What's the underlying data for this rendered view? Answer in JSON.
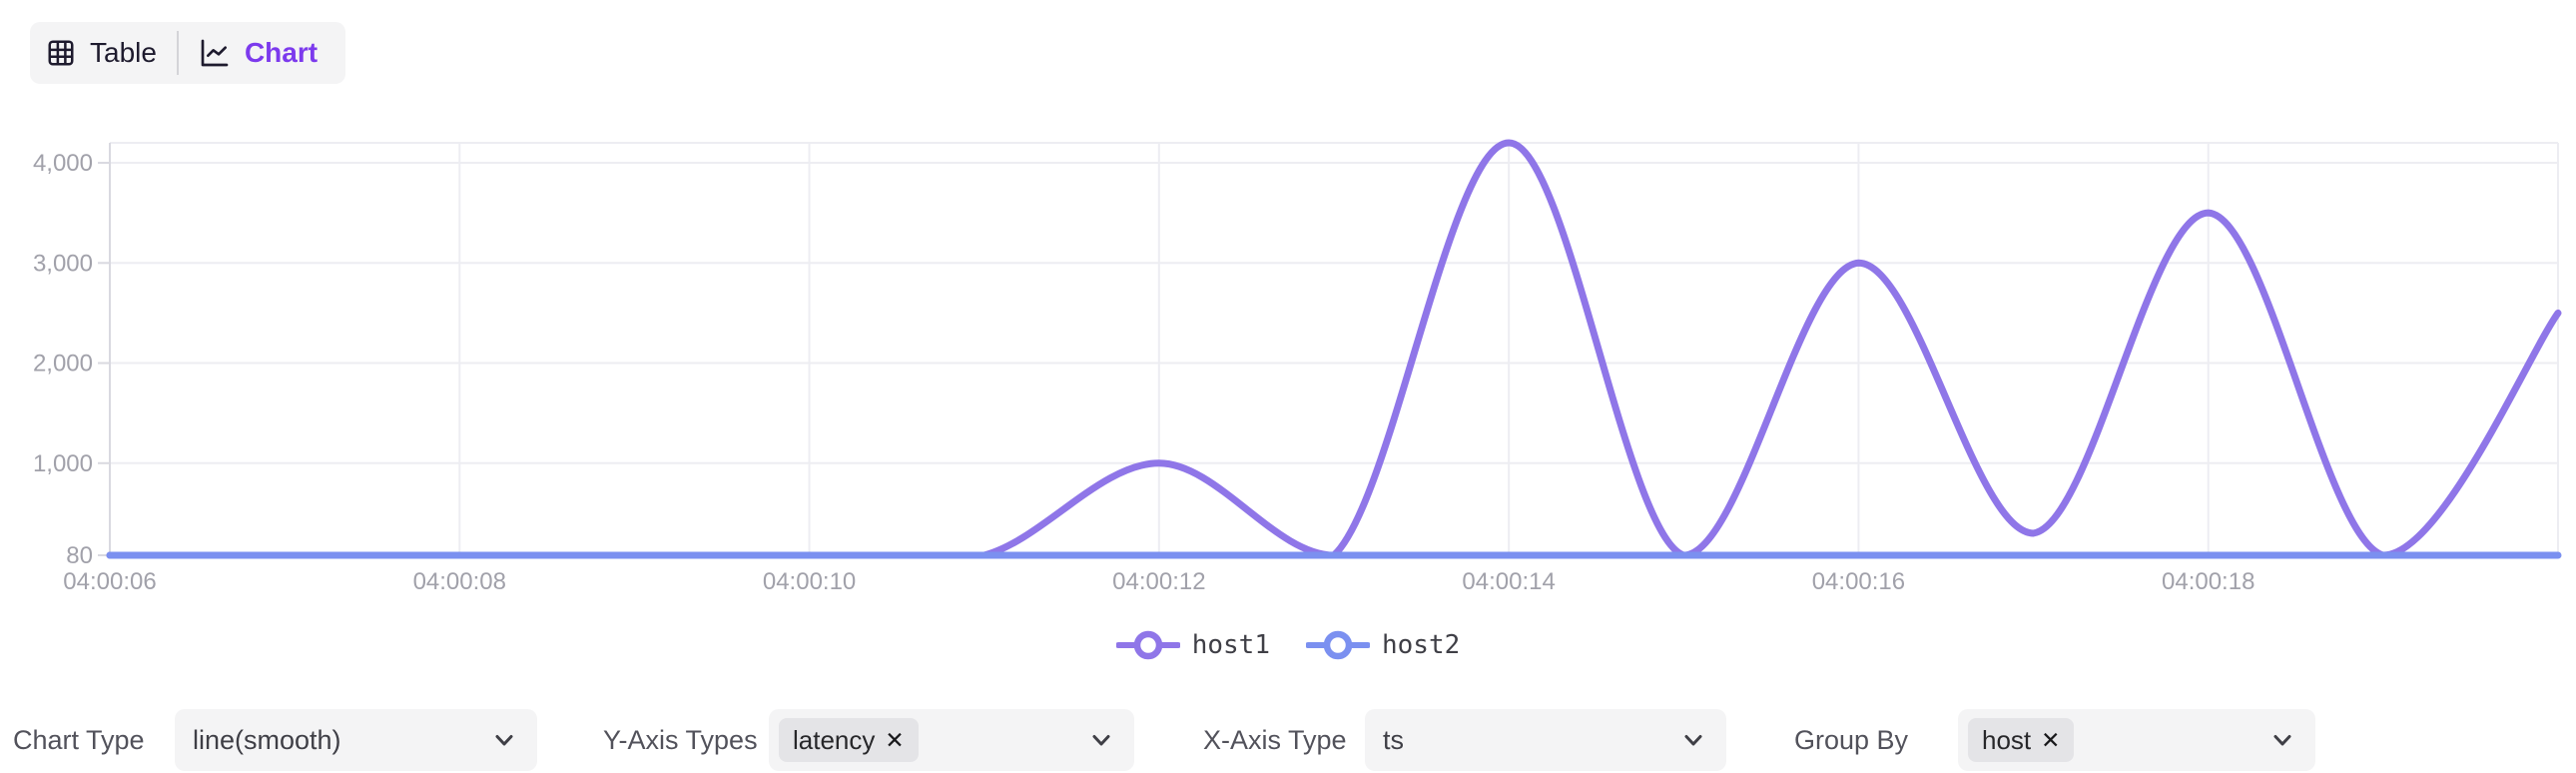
{
  "toolbar": {
    "table_label": "Table",
    "chart_label": "Chart"
  },
  "chart_data": {
    "type": "line",
    "smooth": true,
    "x_unit": "seconds after 04:00:00",
    "x": [
      6,
      7,
      8,
      9,
      10,
      11,
      12,
      13,
      14,
      15,
      16,
      17,
      18,
      19,
      20
    ],
    "x_ticks": [
      {
        "s": 6,
        "label": "04:00:06"
      },
      {
        "s": 8,
        "label": "04:00:08"
      },
      {
        "s": 10,
        "label": "04:00:10"
      },
      {
        "s": 12,
        "label": "04:00:12"
      },
      {
        "s": 14,
        "label": "04:00:14"
      },
      {
        "s": 16,
        "label": "04:00:16"
      },
      {
        "s": 18,
        "label": "04:00:18"
      }
    ],
    "y_ticks": [
      {
        "v": 80,
        "label": "80"
      },
      {
        "v": 1000,
        "label": "1,000"
      },
      {
        "v": 2000,
        "label": "2,000"
      },
      {
        "v": 3000,
        "label": "3,000"
      },
      {
        "v": 4000,
        "label": "4,000"
      }
    ],
    "ylim": [
      80,
      4200
    ],
    "grid": true,
    "legend_position": "bottom",
    "series": [
      {
        "name": "host1",
        "color": "#8f76e8",
        "values": [
          80,
          80,
          80,
          80,
          80,
          80,
          1000,
          80,
          4200,
          80,
          3000,
          300,
          3500,
          80,
          2500
        ]
      },
      {
        "name": "host2",
        "color": "#7b90f0",
        "values": [
          80,
          80,
          80,
          80,
          80,
          80,
          80,
          80,
          80,
          80,
          80,
          80,
          80,
          80,
          80
        ]
      }
    ]
  },
  "legend": {
    "items": [
      {
        "label": "host1",
        "color": "#8f76e8"
      },
      {
        "label": "host2",
        "color": "#7b90f0"
      }
    ]
  },
  "controls": [
    {
      "label": "Chart Type",
      "type": "select",
      "value": "line(smooth)"
    },
    {
      "label": "Y-Axis Types",
      "type": "multiselect",
      "tags": [
        "latency"
      ]
    },
    {
      "label": "X-Axis Type",
      "type": "select",
      "value": "ts"
    },
    {
      "label": "Group By",
      "type": "multiselect",
      "tags": [
        "host"
      ]
    }
  ],
  "colors": {
    "accent": "#7c3aed",
    "axis_label": "#a1a1aa",
    "grid_line": "#ededf2",
    "axis_line": "#d9d9e0",
    "control_bg": "#f4f4f5",
    "tag_bg": "#e4e4e7"
  }
}
